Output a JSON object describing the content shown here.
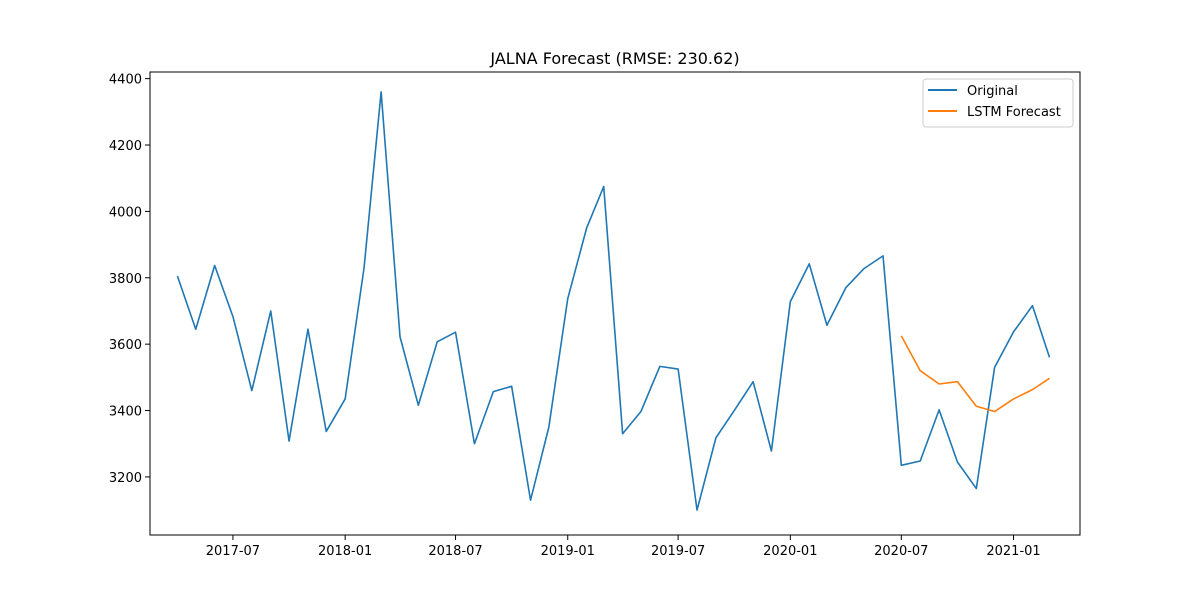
{
  "chart_data": {
    "type": "line",
    "title": "JALNA Forecast (RMSE: 230.62)",
    "xlabel": "",
    "ylabel": "",
    "x_tick_labels": [
      "2017-07",
      "2018-01",
      "2018-07",
      "2019-01",
      "2019-07",
      "2020-01",
      "2020-07",
      "2021-01"
    ],
    "y_ticks": [
      3200,
      3400,
      3600,
      3800,
      4000,
      4200,
      4400
    ],
    "xlim": [
      "2017-02-15",
      "2021-04-20"
    ],
    "ylim": [
      3025,
      4420
    ],
    "grid": false,
    "legend_position": "top-right",
    "series": [
      {
        "name": "Original",
        "color": "#1f77b4",
        "x": [
          "2017-04",
          "2017-05",
          "2017-06",
          "2017-07",
          "2017-08",
          "2017-09",
          "2017-10",
          "2017-11",
          "2017-12",
          "2018-01",
          "2018-02",
          "2018-03",
          "2018-04",
          "2018-05",
          "2018-06",
          "2018-07",
          "2018-08",
          "2018-09",
          "2018-10",
          "2018-11",
          "2018-12",
          "2019-01",
          "2019-02",
          "2019-03",
          "2019-04",
          "2019-05",
          "2019-06",
          "2019-07",
          "2019-08",
          "2019-09",
          "2019-10",
          "2019-11",
          "2019-12",
          "2020-01",
          "2020-02",
          "2020-03",
          "2020-04",
          "2020-05",
          "2020-06",
          "2020-07",
          "2020-08",
          "2020-09",
          "2020-10",
          "2020-11",
          "2020-12",
          "2021-01",
          "2021-02",
          "2021-03"
        ],
        "values": [
          3805,
          3645,
          3837,
          3683,
          3460,
          3700,
          3308,
          3645,
          3337,
          3435,
          3830,
          4360,
          3622,
          3416,
          3607,
          3636,
          3300,
          3457,
          3473,
          3130,
          3350,
          3737,
          3950,
          4075,
          3330,
          3397,
          3533,
          3525,
          3100,
          3318,
          3400,
          3487,
          3278,
          3728,
          3842,
          3657,
          3770,
          3828,
          3866,
          3235,
          3248,
          3402,
          3245,
          3165,
          3530,
          3637,
          3716,
          3560
        ]
      },
      {
        "name": "LSTM Forecast",
        "color": "#ff7f0e",
        "x": [
          "2020-07",
          "2020-08",
          "2020-09",
          "2020-10",
          "2020-11",
          "2020-12",
          "2021-01",
          "2021-02",
          "2021-03"
        ],
        "values": [
          3625,
          3520,
          3480,
          3487,
          3413,
          3397,
          3435,
          3463,
          3497
        ]
      }
    ]
  }
}
